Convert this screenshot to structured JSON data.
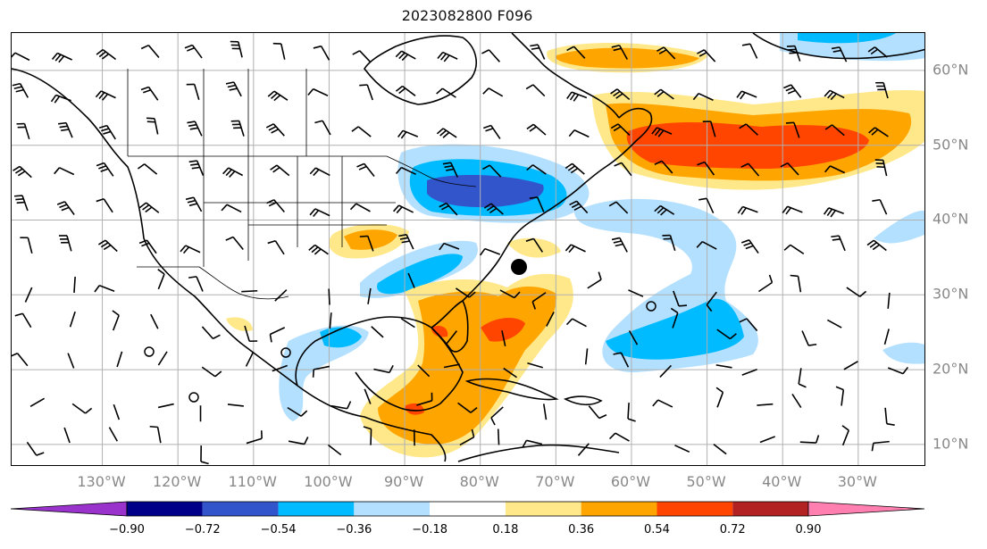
{
  "title": "2023082800 F096",
  "map": {
    "projection": "plate-carree",
    "extent": {
      "lon_min": -142,
      "lon_max": -21,
      "lat_min": 7,
      "lat_max": 65
    },
    "coastlines": true,
    "state_borders": true,
    "gridlines": true,
    "wind_barbs": true,
    "storm_marker": "black-dot"
  },
  "lon_labels": [
    "130°W",
    "120°W",
    "110°W",
    "100°W",
    "90°W",
    "80°W",
    "70°W",
    "60°W",
    "50°W",
    "40°W",
    "30°W"
  ],
  "lat_labels": [
    "60°N",
    "50°N",
    "40°N",
    "30°N",
    "20°N",
    "10°N"
  ],
  "colorbar": {
    "colors": [
      "#9933cc",
      "#000088",
      "#3355cc",
      "#00bbff",
      "#b3e0ff",
      "#ffffff",
      "#ffe88a",
      "#ffa500",
      "#ff4500",
      "#b22222",
      "#ff80b0"
    ],
    "tick_labels": [
      "−0.90",
      "−0.72",
      "−0.54",
      "−0.36",
      "−0.18",
      "0.18",
      "0.36",
      "0.54",
      "0.72",
      "0.90"
    ]
  }
}
